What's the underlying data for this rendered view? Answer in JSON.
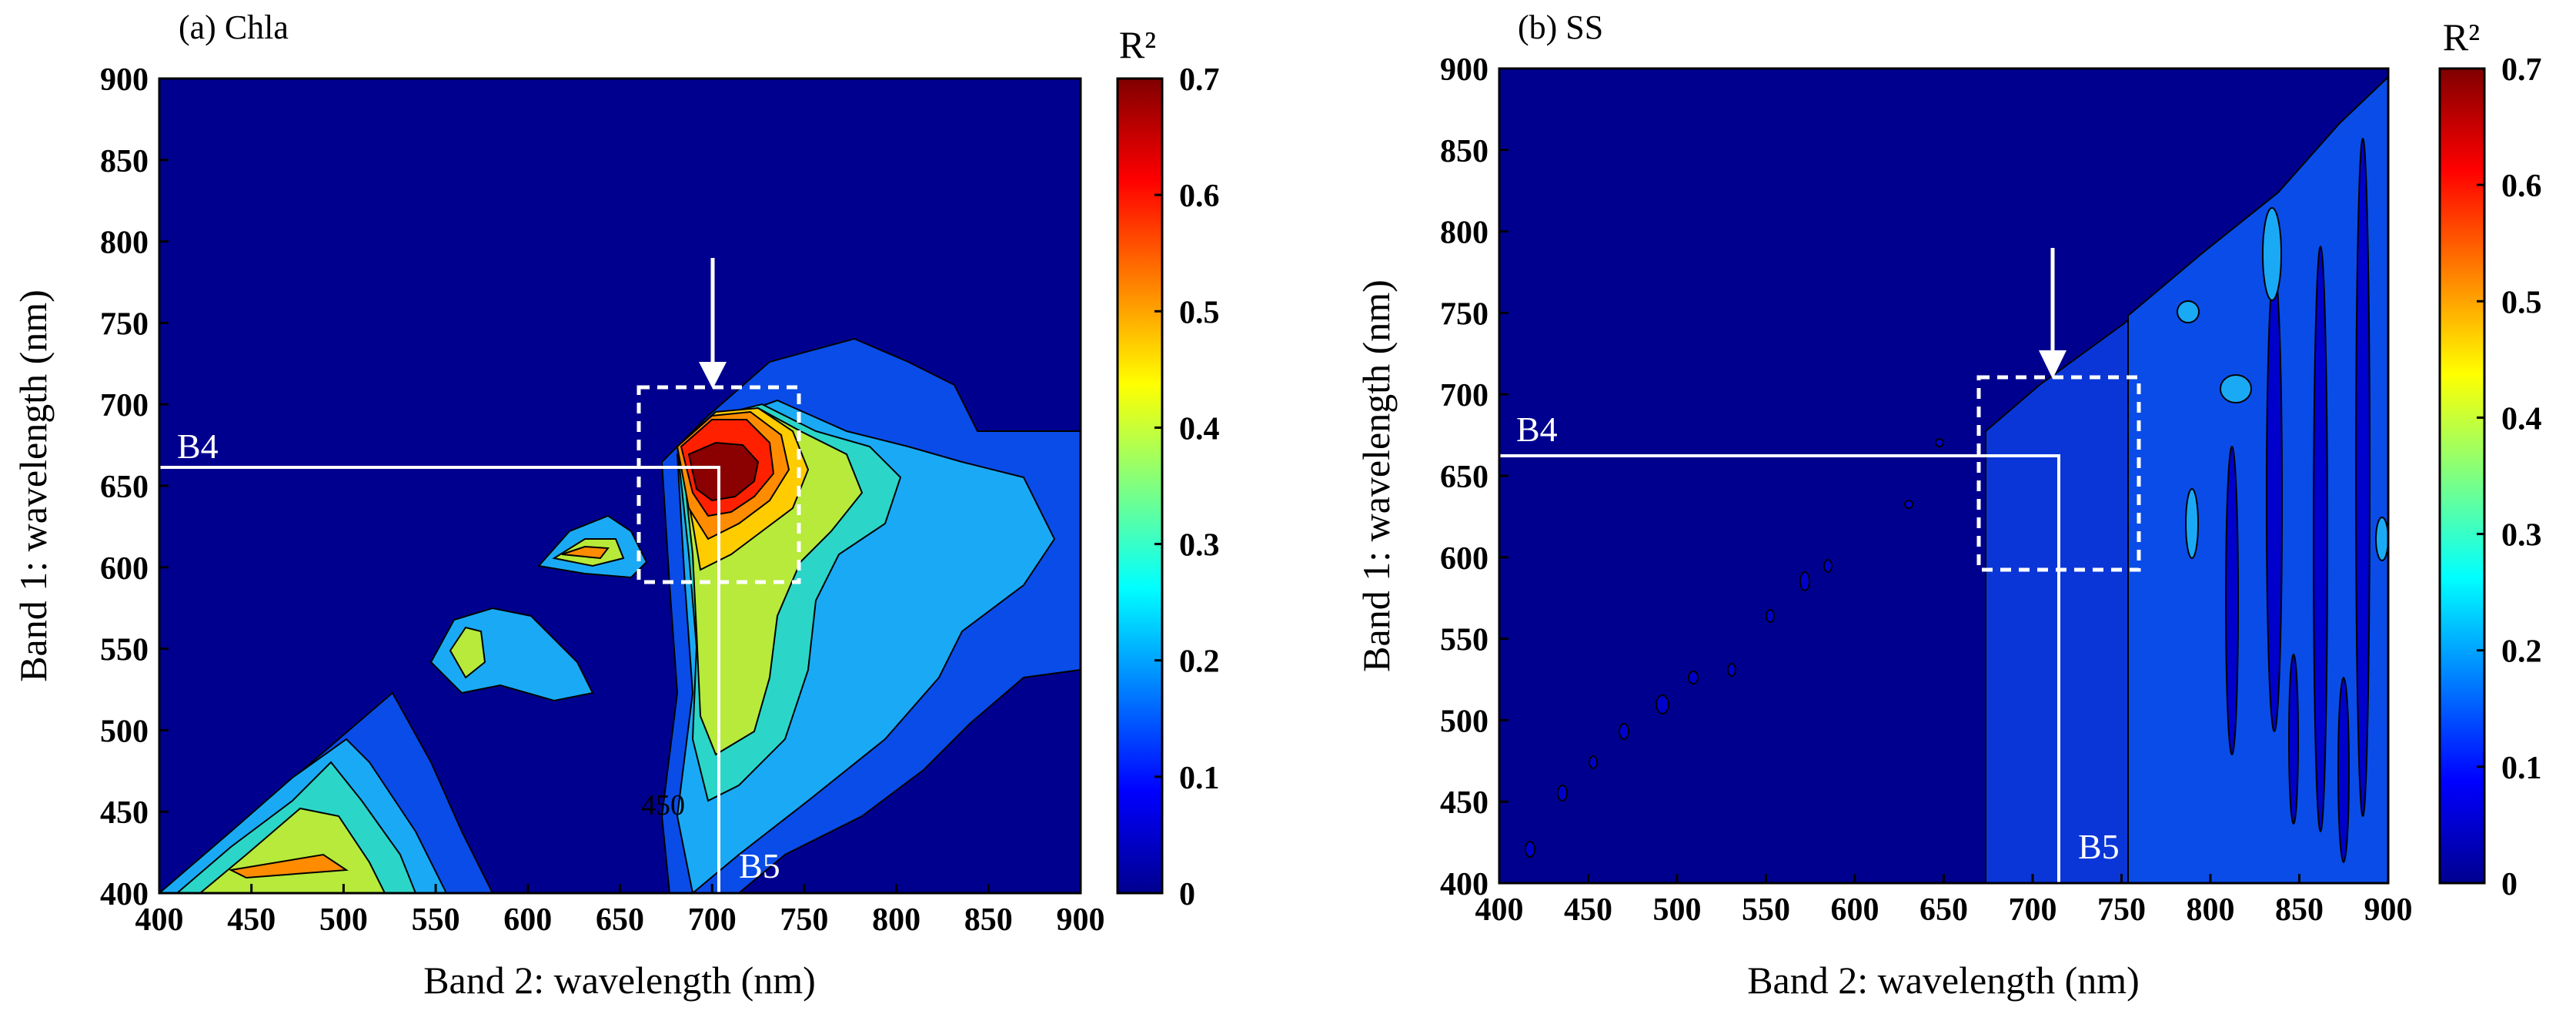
{
  "chart_data": [
    {
      "type": "heatmap",
      "title": "(a) Chla",
      "xlabel": "Band 2: wavelength (nm)",
      "ylabel": "Band 1: wavelength (nm)",
      "xlim": [
        400,
        900
      ],
      "ylim": [
        400,
        900
      ],
      "xticks": [
        "400",
        "450",
        "500",
        "550",
        "600",
        "650",
        "700",
        "750",
        "800",
        "850",
        "900"
      ],
      "yticks": [
        "400",
        "450",
        "500",
        "550",
        "600",
        "650",
        "700",
        "750",
        "800",
        "850",
        "900"
      ],
      "colorbar": {
        "title": "R²",
        "range": [
          0,
          0.7
        ],
        "ticks": [
          "0",
          "0.1",
          "0.2",
          "0.3",
          "0.4",
          "0.5",
          "0.6",
          "0.7"
        ]
      },
      "annotations": {
        "b4_label": "B4",
        "b5_label": "B5",
        "b4_wavelength": 665,
        "b5_wavelength": 710,
        "contour_label": "450",
        "highlight_box": {
          "x": [
            670,
            760
          ],
          "y": [
            590,
            710
          ]
        },
        "arrow_target": {
          "x": 707,
          "y": 710
        }
      },
      "peak": {
        "x": 712,
        "y": 650,
        "r2": 0.7
      },
      "colors": {
        "background": "#00008f"
      }
    },
    {
      "type": "heatmap",
      "title": "(b) SS",
      "xlabel": "Band 2: wavelength (nm)",
      "ylabel": "Band 1: wavelength (nm)",
      "xlim": [
        400,
        900
      ],
      "ylim": [
        400,
        900
      ],
      "xticks": [
        "400",
        "450",
        "500",
        "550",
        "600",
        "650",
        "700",
        "750",
        "800",
        "850",
        "900"
      ],
      "yticks": [
        "400",
        "450",
        "500",
        "550",
        "600",
        "650",
        "700",
        "750",
        "800",
        "850",
        "900"
      ],
      "colorbar": {
        "title": "R²",
        "range": [
          0,
          0.7
        ],
        "ticks": [
          "0",
          "0.1",
          "0.2",
          "0.3",
          "0.4",
          "0.5",
          "0.6",
          "0.7"
        ]
      },
      "annotations": {
        "b4_label": "B4",
        "b5_label": "B5",
        "b4_wavelength": 665,
        "b5_wavelength": 710,
        "highlight_box": {
          "x": [
            670,
            760
          ],
          "y": [
            598,
            718
          ]
        },
        "arrow_target": {
          "x": 707,
          "y": 718
        }
      },
      "colors": {
        "background": "#00008f"
      }
    }
  ]
}
